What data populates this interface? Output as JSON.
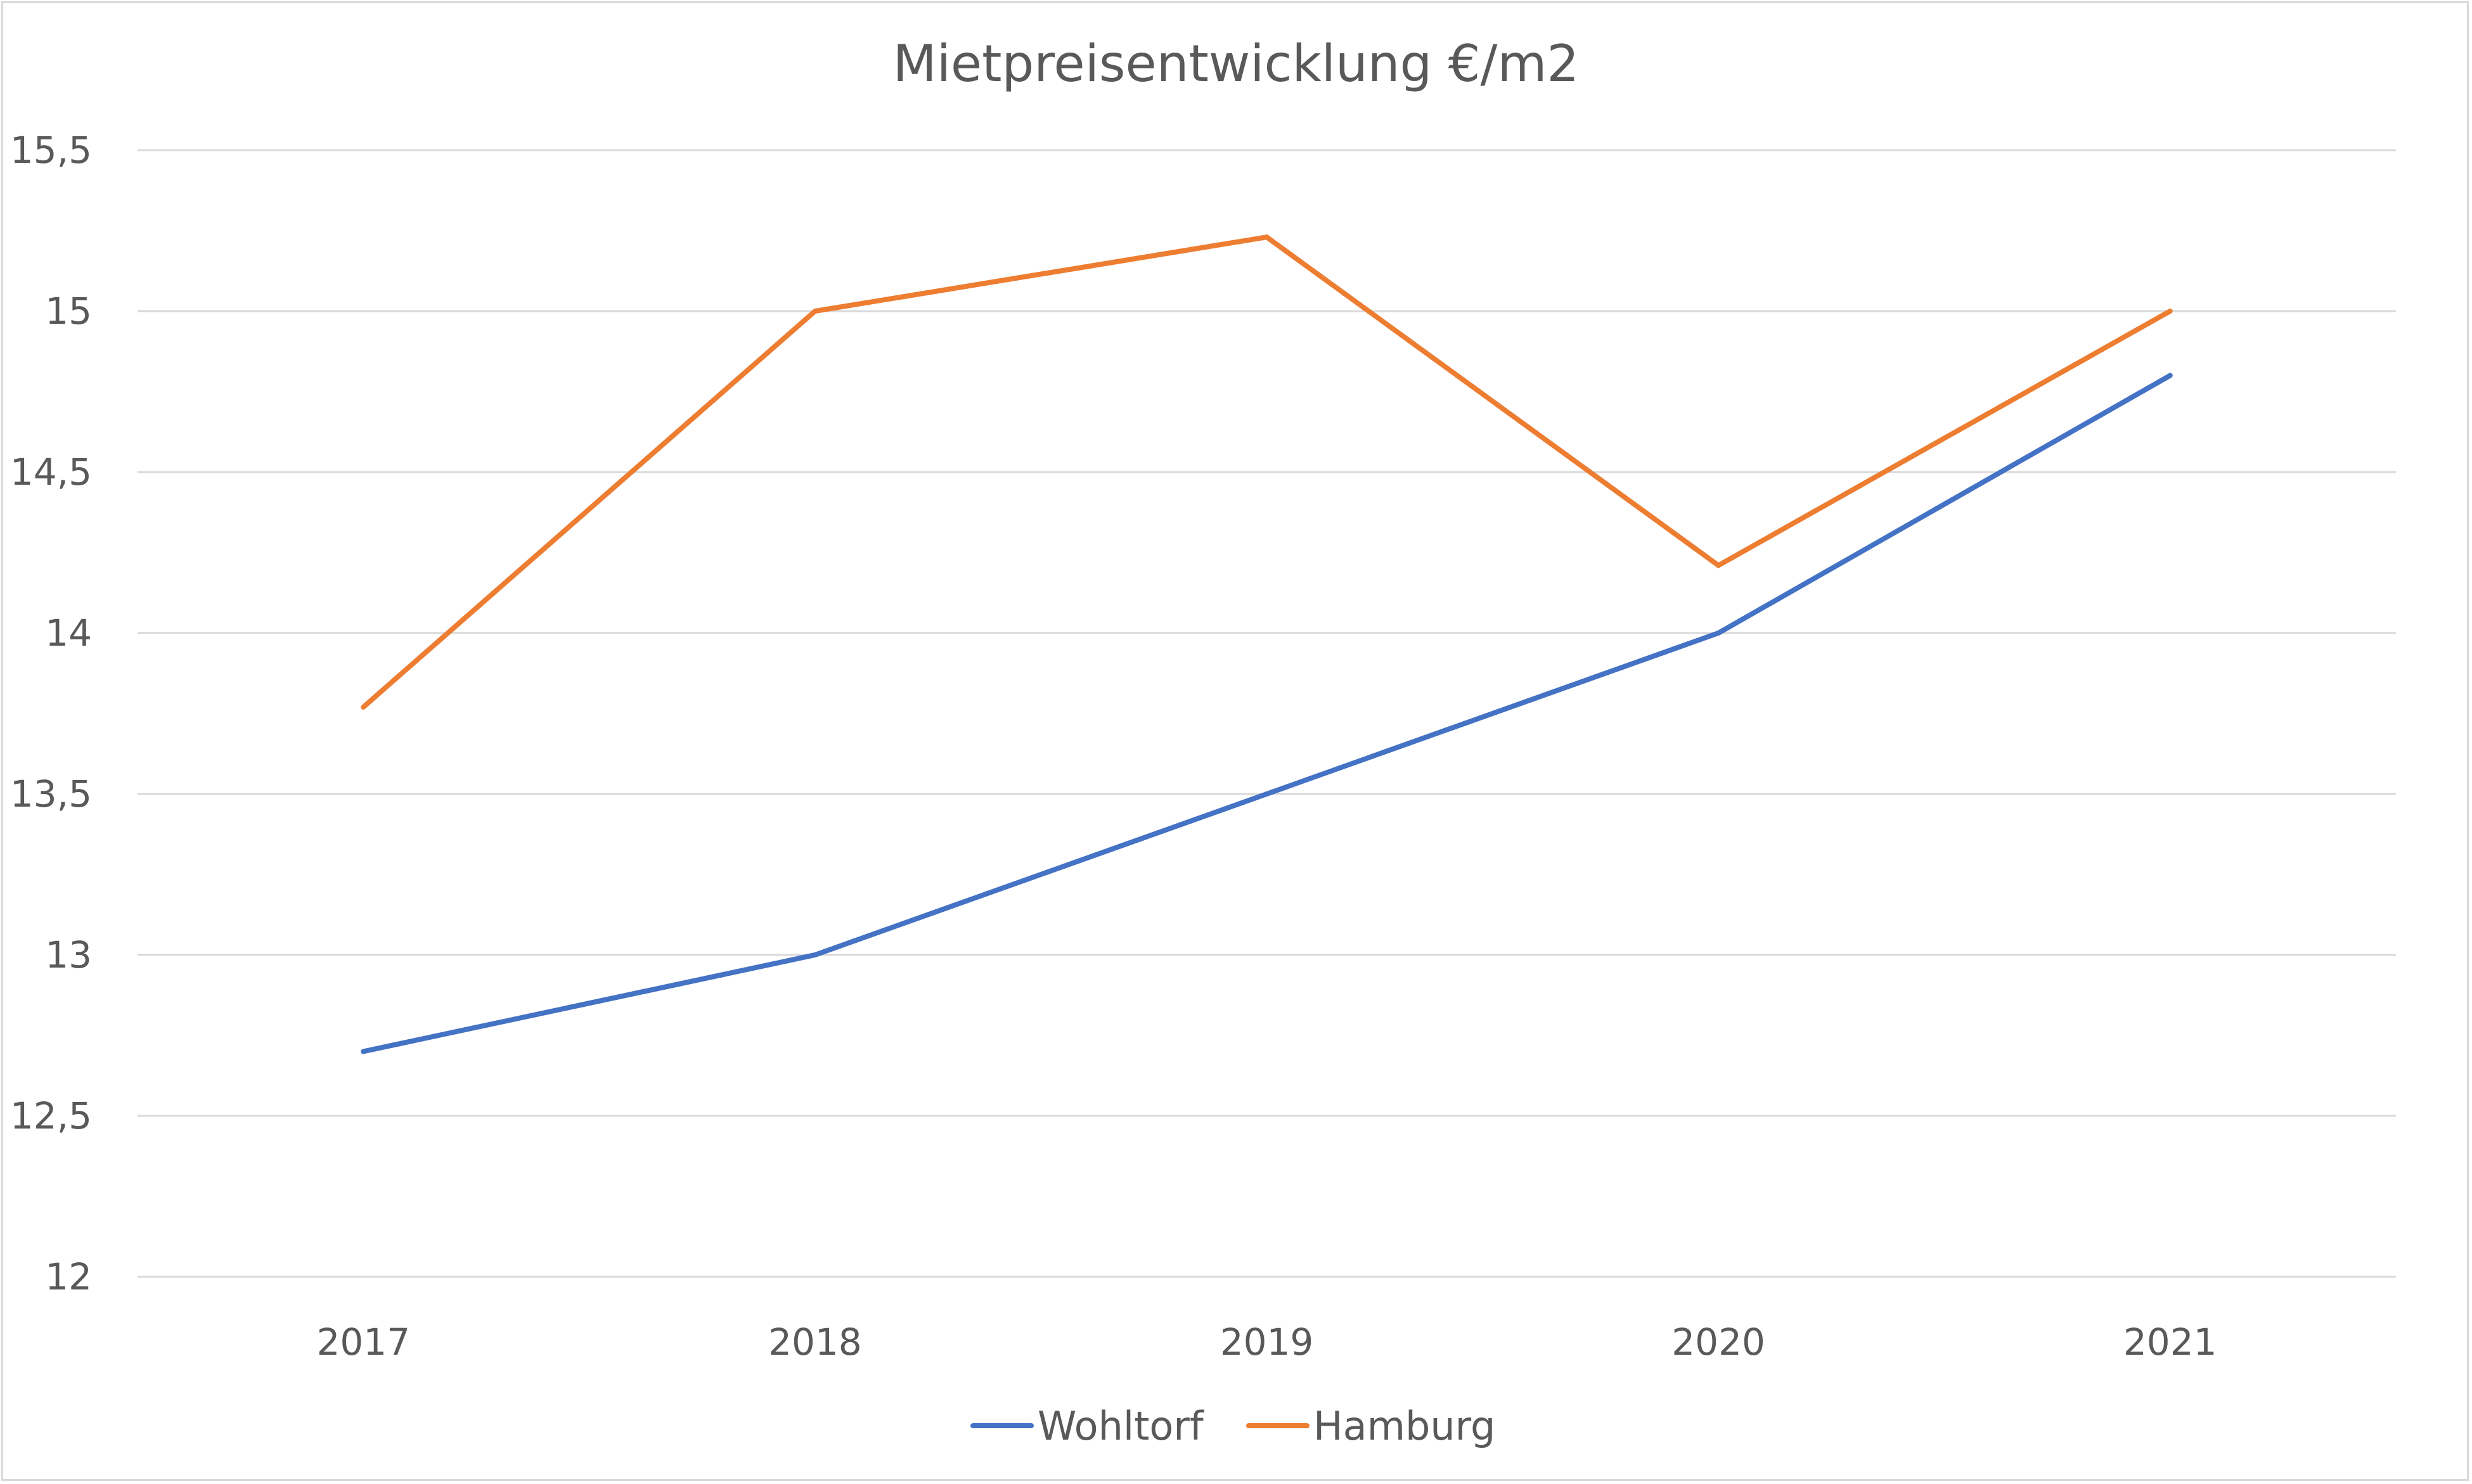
{
  "chart_data": {
    "type": "line",
    "title": "Mietpreisentwicklung  €/m2",
    "xlabel": "",
    "ylabel": "",
    "categories": [
      "2017",
      "2018",
      "2019",
      "2020",
      "2021"
    ],
    "ylim": [
      12,
      15.5
    ],
    "yticks": [
      12,
      12.5,
      13,
      13.5,
      14,
      14.5,
      15,
      15.5
    ],
    "ytick_labels": [
      "12",
      "12,5",
      "13",
      "13,5",
      "14",
      "14,5",
      "15",
      "15,5"
    ],
    "grid": true,
    "legend_position": "bottom",
    "series": [
      {
        "name": "Wohltorf",
        "color": "#4472C4",
        "values": [
          12.7,
          13.0,
          13.5,
          14.0,
          14.8
        ]
      },
      {
        "name": "Hamburg",
        "color": "#ED7D31",
        "values": [
          13.77,
          15.0,
          15.23,
          14.21,
          15.0
        ]
      }
    ]
  }
}
